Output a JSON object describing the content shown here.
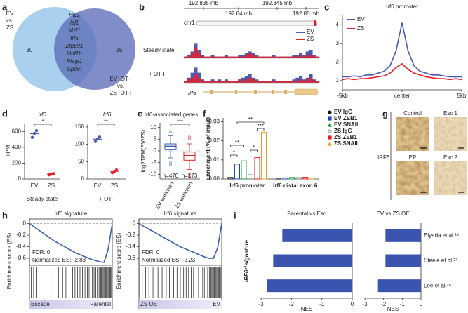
{
  "panel_letters": [
    "a",
    "b",
    "c",
    "d",
    "e",
    "f",
    "g",
    "h",
    "i"
  ],
  "venn": {
    "left_label": [
      "EV",
      "vs.",
      "ZS"
    ],
    "right_label": [
      "EV+OT-I",
      "vs.",
      "ZS+OT-I"
    ],
    "left_count": 30,
    "right_count": 35,
    "shared_genes": [
      "Hic1",
      "Isl1",
      "Mzf1",
      "Irf6",
      "Zfp691",
      "Hnf1b",
      "Plagl1",
      "Spdef"
    ],
    "colors": [
      "#a9d0ee",
      "#5c6db8"
    ]
  },
  "tracks": {
    "scale_labels": [
      "192.835 mb",
      "192.84 mb",
      "192.845 mb",
      "192.85 mb"
    ],
    "chromosome": "chr1",
    "conditions": [
      "Steady state",
      "+ OT-I"
    ],
    "gene": "Irf6",
    "ylim": [
      0,
      10
    ],
    "series": [
      {
        "name": "EV",
        "color": "#4a5ab0",
        "values": [
          [
            1,
            2,
            4,
            9,
            5,
            2,
            1,
            1,
            2,
            1,
            1,
            1,
            2,
            1,
            1,
            1,
            2,
            2,
            3,
            4,
            3,
            2,
            1,
            1,
            1,
            1,
            2,
            1,
            1,
            1,
            1,
            1,
            2,
            2,
            3,
            2,
            4,
            5,
            2,
            1
          ],
          [
            1,
            3,
            6,
            9,
            6,
            2,
            1,
            1,
            2,
            1,
            2,
            1,
            2,
            1,
            1,
            1,
            2,
            3,
            4,
            5,
            3,
            2,
            1,
            1,
            1,
            1,
            2,
            1,
            1,
            1,
            1,
            1,
            2,
            3,
            4,
            2,
            3,
            5,
            2,
            1
          ]
        ]
      },
      {
        "name": "ZS",
        "color": "#e8202a",
        "values": [
          [
            1,
            1,
            3,
            6,
            3,
            1,
            1,
            1,
            1,
            1,
            1,
            1,
            1,
            1,
            1,
            1,
            1,
            1,
            2,
            3,
            2,
            1,
            1,
            1,
            1,
            1,
            1,
            1,
            1,
            1,
            1,
            1,
            1,
            1,
            2,
            1,
            2,
            2,
            1,
            1
          ],
          [
            1,
            2,
            3,
            5,
            3,
            1,
            1,
            1,
            1,
            1,
            1,
            1,
            1,
            1,
            1,
            1,
            2,
            1,
            2,
            3,
            2,
            1,
            1,
            1,
            1,
            1,
            1,
            1,
            1,
            1,
            1,
            1,
            1,
            1,
            2,
            1,
            2,
            3,
            1,
            1
          ]
        ]
      }
    ]
  },
  "chart_data": [
    {
      "type": "line",
      "title": "Irf6 promoter",
      "legend": "upper left",
      "x": [
        -5,
        -4.5,
        -4,
        -3.5,
        -3,
        -2.5,
        -2,
        -1.5,
        -1,
        -0.5,
        0,
        0.5,
        1,
        1.5,
        2,
        2.5,
        3,
        3.5,
        4,
        4.5,
        5
      ],
      "xlim": [
        -5,
        5
      ],
      "xticks": [
        {
          "value": -5,
          "label": "-5kb"
        },
        {
          "value": 0,
          "label": "center"
        },
        {
          "value": 5,
          "label": "5kb"
        }
      ],
      "ylim": [
        0.5,
        4.5
      ],
      "yticks": [
        1,
        2,
        3,
        4
      ],
      "series": [
        {
          "name": "EV",
          "color": "#4a5ab0",
          "values": [
            1.2,
            1.2,
            1.25,
            1.2,
            1.3,
            1.3,
            1.4,
            1.5,
            1.8,
            2.6,
            4.1,
            2.6,
            1.8,
            1.5,
            1.4,
            1.3,
            1.3,
            1.25,
            1.2,
            1.2,
            1.2
          ]
        },
        {
          "name": "ZS",
          "color": "#e8202a",
          "values": [
            1.05,
            1.1,
            1.05,
            1.1,
            1.1,
            1.15,
            1.2,
            1.25,
            1.4,
            1.7,
            1.9,
            1.6,
            1.4,
            1.3,
            1.2,
            1.15,
            1.1,
            1.1,
            1.05,
            1.1,
            1.05
          ]
        }
      ]
    },
    {
      "type": "dot",
      "y_label": "TPM",
      "colors": [
        "#4a5ab0",
        "#e8202a"
      ],
      "panels": [
        {
          "title": "Irf6",
          "categories": [
            "EV",
            "ZS"
          ],
          "values": [
            [
              525,
              575,
              610
            ],
            [
              52,
              60,
              68
            ]
          ],
          "means": [
            572,
            60
          ],
          "ylim": [
            0,
            700
          ],
          "yticks": [
            0,
            200,
            400,
            600
          ],
          "significance": "*",
          "x_label": "Steady state"
        },
        {
          "title": "Irf6",
          "categories": [
            "EV",
            "ZS"
          ],
          "values": [
            [
              108,
              115,
              121
            ],
            [
              18,
              22,
              26
            ]
          ],
          "means": [
            115,
            22
          ],
          "ylim": [
            0,
            160
          ],
          "yticks": [
            0,
            50,
            100,
            150
          ],
          "significance": "**",
          "x_label": "+ OT-I"
        }
      ]
    },
    {
      "type": "box",
      "title": "Irf6-associated genes",
      "y_label": "log2TPM(EV/ZS)",
      "zero_line": true,
      "categories": [
        "EV enriched",
        "ZS enriched"
      ],
      "n_labels": [
        "n=470",
        "n=173"
      ],
      "colors": [
        "#3a5fb0",
        "#e8202a"
      ],
      "ylim": [
        -12,
        12
      ],
      "yticks": [
        -10,
        -5,
        0,
        5,
        10
      ],
      "significance": "***",
      "boxes": [
        {
          "whisker_low": -3,
          "q1": 0.5,
          "median": 2,
          "q3": 3,
          "whisker_high": 6.5,
          "outliers": [
            -5,
            -6,
            8
          ]
        },
        {
          "whisker_low": -8,
          "q1": -4,
          "median": -2,
          "q3": -0.5,
          "whisker_high": 3,
          "outliers": [
            -10,
            -11,
            5,
            6
          ]
        }
      ]
    },
    {
      "type": "bar",
      "y_label": "Enrichment (% of input)",
      "categories": [
        "Irf6 promoter",
        "Irf6 distal exon 6"
      ],
      "ylim": [
        0,
        0.032
      ],
      "yticks": [
        {
          "value": 0,
          "label": "0.00"
        },
        {
          "value": 0.01,
          "label": "0.01"
        },
        {
          "value": 0.02,
          "label": "0.02"
        },
        {
          "value": 0.03,
          "label": "0.03"
        }
      ],
      "significance": [
        "**",
        "*",
        "*",
        "**",
        "***"
      ],
      "series": [
        {
          "name": "EV IgG",
          "color": "#111111",
          "marker": "circle",
          "filled": true,
          "values": [
            0.0008,
            0.0005
          ]
        },
        {
          "name": "EV ZEB1",
          "color": "#2340c8",
          "marker": "square",
          "filled": true,
          "values": [
            0.0078,
            0.0006
          ]
        },
        {
          "name": "EV SNAIL",
          "color": "#1f9a3a",
          "marker": "triangle",
          "filled": true,
          "values": [
            0.0095,
            0.0008
          ]
        },
        {
          "name": "ZS IgG",
          "color": "#777777",
          "marker": "circle",
          "filled": false,
          "values": [
            0.0022,
            0.0007
          ]
        },
        {
          "name": "ZS ZEB1",
          "color": "#e02020",
          "marker": "square",
          "filled": true,
          "values": [
            0.0112,
            0.0009
          ]
        },
        {
          "name": "ZS SNAIL",
          "color": "#f09a20",
          "marker": "triangle",
          "filled": true,
          "values": [
            0.0245,
            0.0006
          ]
        }
      ]
    },
    {
      "type": "gsea",
      "y_label": "Enrichment score (ES)",
      "color": "#3a5fb0",
      "zero_line": true,
      "xlim": [
        0,
        100
      ],
      "ylim": [
        -0.72,
        0.08
      ],
      "yticks": [
        -0.6,
        -0.4,
        -0.2,
        0
      ],
      "panels": [
        {
          "title": "Irf6 signature",
          "fdr": "FDR: 0",
          "nes_label": "Normalized ES: -2.83",
          "left_label": "Escape",
          "right_label": "Parental",
          "x": [
            0,
            5,
            10,
            15,
            20,
            25,
            30,
            35,
            40,
            45,
            50,
            55,
            60,
            65,
            70,
            75,
            80,
            85,
            90,
            95,
            100
          ],
          "values": [
            0,
            -0.05,
            -0.1,
            -0.15,
            -0.2,
            -0.25,
            -0.3,
            -0.34,
            -0.38,
            -0.42,
            -0.46,
            -0.5,
            -0.53,
            -0.56,
            -0.59,
            -0.62,
            -0.64,
            -0.66,
            -0.67,
            -0.45,
            0
          ],
          "hits": [
            2,
            5,
            9,
            14,
            20,
            26,
            31,
            35,
            40,
            44,
            48,
            52,
            55,
            58,
            61,
            64,
            67,
            70,
            72,
            74,
            76,
            78,
            80,
            82,
            84,
            85,
            86,
            87,
            88,
            89,
            90,
            91,
            92,
            93,
            94,
            95,
            96,
            97,
            98,
            99
          ]
        },
        {
          "title": "Irf6 signature",
          "fdr": "FDR: 0",
          "nes_label": "Normalized ES: -2.23",
          "left_label": "ZS OE",
          "right_label": "EV",
          "x": [
            0,
            5,
            10,
            15,
            20,
            25,
            30,
            35,
            40,
            45,
            50,
            55,
            60,
            65,
            70,
            75,
            80,
            85,
            90,
            95,
            100
          ],
          "values": [
            0,
            -0.04,
            -0.08,
            -0.12,
            -0.16,
            -0.2,
            -0.24,
            -0.28,
            -0.32,
            -0.36,
            -0.4,
            -0.43,
            -0.46,
            -0.49,
            -0.52,
            -0.55,
            -0.58,
            -0.6,
            -0.6,
            -0.42,
            0
          ],
          "hits": [
            1,
            4,
            8,
            12,
            17,
            23,
            28,
            33,
            37,
            42,
            46,
            50,
            54,
            57,
            60,
            63,
            66,
            69,
            72,
            75,
            77,
            79,
            81,
            83,
            85,
            87,
            88,
            89,
            90,
            91,
            92,
            93,
            94,
            95,
            96,
            97,
            98,
            99
          ]
        }
      ]
    },
    {
      "type": "barh",
      "y_label": "IRF6ʰⁱ signature",
      "x_label": "NES",
      "color": "#3a55b0",
      "categories": [
        "Elyada et al.²⁵",
        "Steele et al.²⁷",
        "Lee et al.²⁶"
      ],
      "xlim": [
        -3,
        0
      ],
      "xticks": [
        -3,
        -2,
        -1,
        0
      ],
      "panels": [
        {
          "title": "Parental vs Esc",
          "values": [
            -2.3,
            -2.6,
            -2.8
          ]
        },
        {
          "title": "EV vs ZS OE",
          "values": [
            -1.9,
            -1.9,
            -2.3
          ]
        }
      ]
    }
  ],
  "ihc": {
    "labels": [
      "Control",
      "Esc 1",
      "EP",
      "Esc 2"
    ],
    "side_label": "IRF6"
  }
}
